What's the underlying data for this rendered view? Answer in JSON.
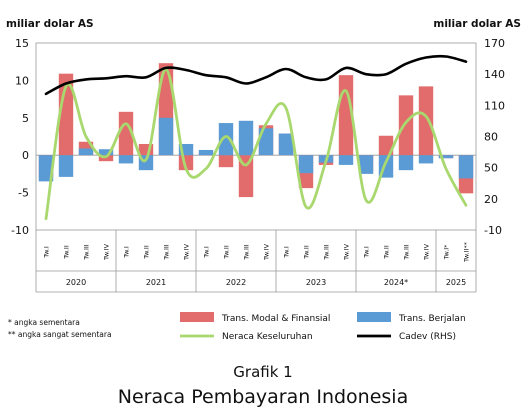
{
  "chart_data": {
    "type": "bar",
    "left_axis_label": "miliar dolar AS",
    "right_axis_label": "miliar dolar AS",
    "ylim_left": [
      -10,
      15
    ],
    "yticks_left": [
      "15",
      "10",
      "5",
      "0",
      "-5",
      "-10"
    ],
    "ylim_right": [
      -10,
      170
    ],
    "yticks_right": [
      "170",
      "140",
      "110",
      "80",
      "50",
      "20",
      "-10"
    ],
    "categories": [
      "Tw.I",
      "Tw.II",
      "Tw.III",
      "Tw.IV",
      "Tw.I",
      "Tw.II",
      "Tw.III",
      "Tw.IV",
      "Tw.I",
      "Tw.II",
      "Tw.III",
      "Tw.IV",
      "Tw.I",
      "Tw.II",
      "Tw.III",
      "Tw.IV",
      "Tw.I",
      "Tw.II",
      "Tw.III",
      "Tw.IV",
      "Tw.I*",
      "Tw.II**"
    ],
    "years": [
      {
        "label": "2020",
        "start": 0,
        "count": 4
      },
      {
        "label": "2021",
        "start": 4,
        "count": 4
      },
      {
        "label": "2022",
        "start": 8,
        "count": 4
      },
      {
        "label": "2023",
        "start": 12,
        "count": 4
      },
      {
        "label": "2024*",
        "start": 16,
        "count": 4
      },
      {
        "label": "2025",
        "start": 20,
        "count": 2
      }
    ],
    "series": [
      {
        "name": "Trans. Modal & Finansial",
        "kind": "bar",
        "axis": "left",
        "color": "#e26c6c",
        "values": [
          -3.0,
          10.9,
          1.8,
          -0.8,
          5.8,
          1.5,
          12.3,
          -2.0,
          0.2,
          -1.6,
          -5.6,
          4.0,
          2.9,
          -4.4,
          -1.3,
          10.7,
          -2.3,
          2.6,
          8.0,
          9.2,
          -0.4,
          -5.1
        ]
      },
      {
        "name": "Trans. Berjalan",
        "kind": "bar",
        "axis": "left",
        "color": "#5b9bd5",
        "values": [
          -3.5,
          -2.9,
          0.9,
          0.8,
          -1.1,
          -2.0,
          5.0,
          1.5,
          0.7,
          4.3,
          4.6,
          3.6,
          2.9,
          -2.4,
          -1.0,
          -1.3,
          -2.5,
          -3.0,
          -2.0,
          -1.1,
          -0.4,
          -3.1
        ]
      },
      {
        "name": "Neraca Keseluruhan",
        "kind": "line",
        "axis": "left",
        "color": "#a8d86e",
        "values": [
          -8.5,
          9.2,
          2.5,
          -0.2,
          4.2,
          -0.6,
          11.5,
          -1.8,
          -1.8,
          2.5,
          -1.3,
          4.2,
          6.3,
          -6.9,
          -0.8,
          8.6,
          -6.0,
          -0.9,
          4.4,
          5.2,
          -1.8,
          -6.7
        ]
      },
      {
        "name": "Cadev (RHS)",
        "kind": "line",
        "axis": "right",
        "color": "#000000",
        "values": [
          121,
          131,
          135,
          136,
          138,
          137,
          146,
          144,
          139,
          137,
          131,
          137,
          145,
          137,
          135,
          146,
          140,
          140,
          150,
          156,
          157,
          152
        ]
      }
    ],
    "grid": false,
    "legend_position": "bottom"
  },
  "notes": [
    "* angka sementara",
    "** angka sangat sementara"
  ],
  "caption": {
    "line1": "Grafik 1",
    "line2": "Neraca Pembayaran Indonesia"
  }
}
